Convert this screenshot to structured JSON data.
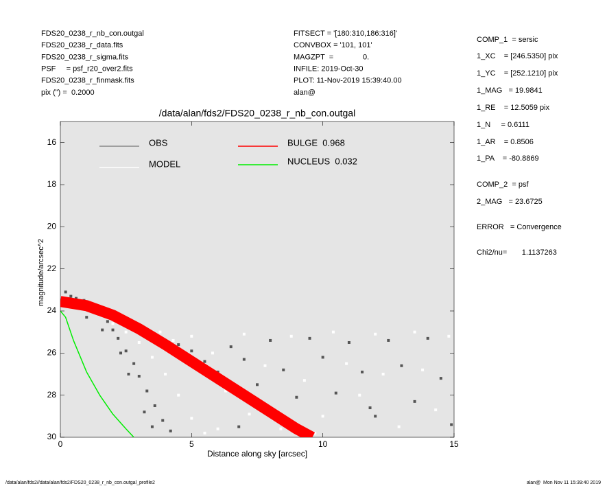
{
  "header": {
    "left": [
      "FDS20_0238_r_nb_con.outgal",
      "FDS20_0238_r_data.fits",
      "FDS20_0238_r_sigma.fits",
      "PSF     = psf_r20_over2.fits",
      "FDS20_0238_r_finmask.fits",
      "pix (\") =  0.2000"
    ],
    "middle": [
      "FITSECT = '[180:310,186:316]'",
      "CONVBOX = '101, 101'",
      "MAGZPT  =              0.",
      "INFILE: 2019-Oct-30",
      "PLOT: 11-Nov-2019 15:39:40.00",
      "alan@"
    ],
    "right": [
      "COMP_1  = sersic",
      "1_XC    = [246.5350] pix",
      "1_YC    = [252.1210] pix",
      "1_MAG   = 19.9841",
      "1_RE    = 12.5059 pix",
      "1_N     = 0.6111",
      "1_AR    = 0.8506",
      "1_PA    = -80.8869",
      "COMP_2  = psf",
      "2_MAG   = 23.6725",
      "ERROR   = Convergence",
      "Chi2/nu=       1.1137263"
    ]
  },
  "footer": {
    "left": "/data/alan/fds2//data/alan/fds2/FDS20_0238_r_nb_con.outgal_profile2",
    "right": "alan@  Mon Nov 11 15:39:40 2019"
  },
  "chart_data": {
    "type": "scatter",
    "title": "/data/alan/fds2/FDS20_0238_r_nb_con.outgal",
    "x_label": "Distance along sky [arcsec]",
    "y_label": "magnitude/arcsec^2",
    "xlim": [
      0,
      15
    ],
    "xticks": [
      0,
      5,
      10,
      15
    ],
    "ylim": [
      30,
      15
    ],
    "yticks": [
      16,
      18,
      20,
      22,
      24,
      26,
      28,
      30
    ],
    "series": [
      {
        "name": "OBS",
        "type": "scatter",
        "color": "#555555",
        "x": [
          0.2,
          0.4,
          0.6,
          0.9,
          1.2,
          1.5,
          1.8,
          2.0,
          2.2,
          2.5,
          2.8,
          3.0,
          3.3,
          3.6,
          3.9,
          4.2,
          1.0,
          1.6,
          2.3,
          2.6,
          3.2,
          3.5,
          4.5,
          5.0,
          5.5,
          6.0,
          6.5,
          7.0,
          7.5,
          8.0,
          8.5,
          9.0,
          9.5,
          10.0,
          10.5,
          11.0,
          11.5,
          12.0,
          12.5,
          13.0,
          13.5,
          14.0,
          14.5,
          14.9,
          6.8,
          11.8
        ],
        "values": [
          23.1,
          23.3,
          23.4,
          23.5,
          23.9,
          24.1,
          24.5,
          24.9,
          25.3,
          25.9,
          26.5,
          27.1,
          27.8,
          28.5,
          29.2,
          29.7,
          24.3,
          24.9,
          26.0,
          27.0,
          28.8,
          29.5,
          25.6,
          25.9,
          26.4,
          26.9,
          25.7,
          26.3,
          27.5,
          25.4,
          26.8,
          28.1,
          25.3,
          26.2,
          27.9,
          25.5,
          26.9,
          29.0,
          25.4,
          26.6,
          28.3,
          25.3,
          27.2,
          29.4,
          29.5,
          28.6
        ]
      },
      {
        "name": "MODEL",
        "type": "scatter",
        "color": "#ffffff",
        "x": [
          0.5,
          1.0,
          1.5,
          2.0,
          2.5,
          3.0,
          3.5,
          4.0,
          4.5,
          5.0,
          5.5,
          3.8,
          4.3,
          5.0,
          5.8,
          6.3,
          7.0,
          7.2,
          7.8,
          8.4,
          8.8,
          9.3,
          10.0,
          10.4,
          10.9,
          11.4,
          12.0,
          12.3,
          12.9,
          13.5,
          13.8,
          14.3,
          14.8,
          6.0,
          9.7
        ],
        "values": [
          23.5,
          23.8,
          24.2,
          24.6,
          25.0,
          25.5,
          26.2,
          27.0,
          28.0,
          29.1,
          29.8,
          25.0,
          25.4,
          25.2,
          26.0,
          27.8,
          25.1,
          28.9,
          26.6,
          29.6,
          25.2,
          27.3,
          29.0,
          25.0,
          26.5,
          28.0,
          25.1,
          27.0,
          29.5,
          25.0,
          26.8,
          28.7,
          25.2,
          29.6,
          29.8
        ]
      },
      {
        "name": "BULGE  0.968",
        "type": "band",
        "color": "#ff0000",
        "x": [
          0,
          1,
          2,
          3,
          4,
          5,
          6,
          7,
          8,
          9,
          9.6
        ],
        "values": [
          23.55,
          23.75,
          24.2,
          24.85,
          25.6,
          26.4,
          27.2,
          28.0,
          28.8,
          29.6,
          30
        ]
      },
      {
        "name": "NUCLEUS  0.032",
        "type": "line",
        "color": "#00ee00",
        "x": [
          0,
          0.2,
          0.5,
          1,
          1.5,
          2,
          2.5,
          2.8
        ],
        "values": [
          24.0,
          24.3,
          25.4,
          26.9,
          28.0,
          28.9,
          29.6,
          30
        ]
      }
    ]
  }
}
